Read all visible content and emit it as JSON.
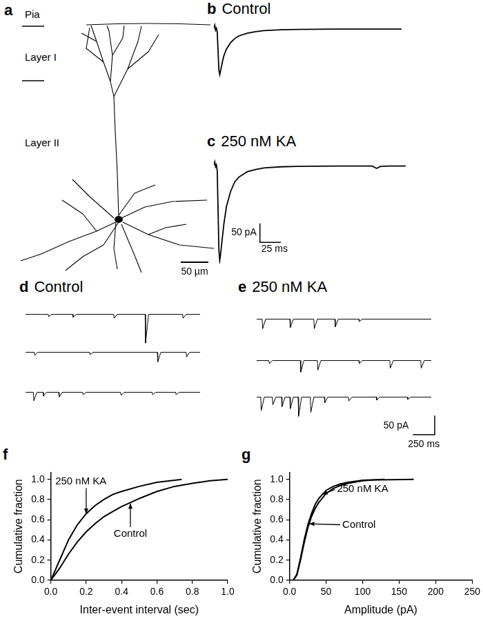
{
  "diagram": {
    "panel": "a",
    "pia": "Pia",
    "layer_1": "Layer I",
    "layer_2": "Layer II",
    "scale_bar": "50 µm"
  },
  "chart_data": [
    {
      "panel": "b",
      "type": "line",
      "title": "Control",
      "color": "#000000",
      "tick_labels": false,
      "xlim": [
        0,
        230
      ],
      "ylim": [
        -140,
        20
      ],
      "x": [
        0,
        1,
        2,
        3,
        4,
        5,
        6,
        7,
        8,
        10,
        12,
        15,
        20,
        25,
        30,
        40,
        50,
        60,
        80,
        100,
        150,
        200,
        225
      ],
      "values": [
        0,
        8,
        -5,
        0,
        -10,
        -60,
        -110,
        -122,
        -112,
        -90,
        -72,
        -55,
        -38,
        -27,
        -20,
        -13,
        -9,
        -6,
        -4,
        -3,
        -2,
        -2,
        -2
      ]
    },
    {
      "panel": "c",
      "type": "line",
      "title": "250 nM KA",
      "color": "#000000",
      "tick_labels": false,
      "xlim": [
        0,
        230
      ],
      "ylim": [
        -260,
        20
      ],
      "x": [
        0,
        1,
        2,
        3,
        4,
        5,
        6,
        7,
        8,
        10,
        12,
        15,
        20,
        25,
        30,
        40,
        50,
        60,
        80,
        100,
        150,
        190,
        195,
        200,
        210,
        230
      ],
      "values": [
        0,
        8,
        -5,
        0,
        -15,
        -120,
        -225,
        -252,
        -235,
        -195,
        -155,
        -110,
        -70,
        -45,
        -32,
        -18,
        -12,
        -8,
        -5,
        -4,
        -3,
        -3,
        -9,
        -4,
        -3,
        -3
      ],
      "scale_bar": {
        "x": 25,
        "x_label": "25 ms",
        "y": 50,
        "y_label": "50 pA"
      }
    },
    {
      "panel": "d",
      "type": "line",
      "title": "Control",
      "color": "#000000",
      "tick_labels": false,
      "xlim": [
        0,
        2000
      ],
      "ylim": [
        -80,
        10
      ],
      "series": [
        {
          "x": [
            0,
            260,
            265,
            300,
            540,
            545,
            580,
            1010,
            1015,
            1050,
            1370,
            1375,
            1410,
            1800,
            1805,
            1840,
            2000
          ],
          "values": [
            0,
            0,
            -6,
            0,
            0,
            -8,
            0,
            0,
            -10,
            0,
            0,
            -75,
            0,
            0,
            -10,
            0,
            0
          ]
        },
        {
          "x": [
            0,
            100,
            105,
            140,
            735,
            740,
            775,
            1510,
            1515,
            1550,
            1840,
            1845,
            1880,
            2000
          ],
          "values": [
            0,
            0,
            -8,
            0,
            0,
            -6,
            0,
            0,
            -25,
            0,
            0,
            -12,
            0,
            0
          ]
        },
        {
          "x": [
            0,
            90,
            95,
            130,
            200,
            205,
            240,
            380,
            385,
            420,
            655,
            660,
            695,
            1090,
            1095,
            1130,
            1450,
            1455,
            1490,
            1720,
            1725,
            1760,
            2000
          ],
          "values": [
            0,
            0,
            -22,
            0,
            0,
            -10,
            0,
            0,
            -12,
            0,
            0,
            -6,
            0,
            0,
            -8,
            0,
            0,
            -6,
            0,
            0,
            -6,
            0,
            0
          ]
        }
      ]
    },
    {
      "panel": "e",
      "type": "line",
      "title": "250 nM KA",
      "color": "#000000",
      "tick_labels": false,
      "xlim": [
        0,
        2000
      ],
      "ylim": [
        -80,
        10
      ],
      "series": [
        {
          "x": [
            0,
            63,
            68,
            103,
            380,
            385,
            420,
            655,
            660,
            695,
            895,
            900,
            935,
            1170,
            1175,
            1210,
            2000
          ],
          "values": [
            0,
            0,
            -25,
            0,
            0,
            -22,
            0,
            0,
            -25,
            0,
            0,
            -20,
            0,
            0,
            -6,
            0,
            0
          ]
        },
        {
          "x": [
            0,
            140,
            145,
            180,
            500,
            505,
            540,
            695,
            700,
            735,
            1170,
            1175,
            1210,
            1525,
            1530,
            1565,
            1880,
            1885,
            1920,
            2000
          ],
          "values": [
            0,
            0,
            -8,
            0,
            0,
            -30,
            0,
            0,
            -25,
            0,
            0,
            -8,
            0,
            0,
            -20,
            0,
            0,
            -20,
            0,
            0
          ]
        },
        {
          "x": [
            0,
            47,
            52,
            87,
            180,
            185,
            220,
            285,
            290,
            325,
            380,
            385,
            420,
            475,
            480,
            515,
            615,
            620,
            655,
            775,
            780,
            815,
            1050,
            1055,
            1090,
            1370,
            1375,
            1410,
            1725,
            1730,
            1765,
            2000
          ],
          "values": [
            0,
            0,
            -35,
            0,
            0,
            -20,
            0,
            0,
            -25,
            0,
            0,
            -30,
            0,
            0,
            -50,
            0,
            0,
            -40,
            0,
            0,
            -15,
            0,
            0,
            -10,
            0,
            0,
            -8,
            0,
            0,
            -6,
            0,
            0
          ]
        }
      ],
      "scale_bar": {
        "x": 250,
        "x_label": "250 ms",
        "y": 50,
        "y_label": "50 pA"
      }
    },
    {
      "panel": "f",
      "type": "line",
      "color": "#000000",
      "grid": false,
      "x_label": "Inter-event interval (sec)",
      "y_label": "Cumulative fraction",
      "xlim": [
        0,
        1
      ],
      "ylim": [
        0,
        1.07
      ],
      "xticks": [
        {
          "value": 0,
          "label": "0.0"
        },
        0.2,
        0.4,
        0.6,
        0.8,
        {
          "value": 1,
          "label": "1.0"
        }
      ],
      "yticks": [
        {
          "value": 0,
          "label": "0.0"
        },
        0.2,
        0.4,
        0.6,
        0.8,
        {
          "value": 1,
          "label": "1.0"
        }
      ],
      "series": [
        {
          "x": [
            0,
            0.05,
            0.1,
            0.15,
            0.2,
            0.25,
            0.3,
            0.35,
            0.4,
            0.45,
            0.5,
            0.6,
            0.7,
            0.8,
            0.9,
            1.0
          ],
          "values": [
            0,
            0.12,
            0.26,
            0.38,
            0.48,
            0.56,
            0.63,
            0.68,
            0.73,
            0.77,
            0.81,
            0.88,
            0.93,
            0.96,
            0.985,
            1.0
          ]
        },
        {
          "x": [
            0,
            0.05,
            0.1,
            0.15,
            0.2,
            0.25,
            0.3,
            0.35,
            0.4,
            0.5,
            0.6,
            0.7,
            0.74
          ],
          "values": [
            0,
            0.2,
            0.4,
            0.55,
            0.66,
            0.74,
            0.8,
            0.85,
            0.88,
            0.93,
            0.97,
            0.99,
            1.0
          ]
        }
      ],
      "annotations": [
        {
          "text": "250 nM KA",
          "x": 0.2,
          "y": 0.66,
          "text_x": 0.17,
          "text_y": 0.98
        },
        {
          "text": "Control",
          "x": 0.45,
          "y": 0.76,
          "text_x": 0.45,
          "text_y": 0.46
        }
      ]
    },
    {
      "panel": "g",
      "type": "line",
      "color": "#000000",
      "grid": false,
      "x_label": "Amplitude (pA)",
      "y_label": "Cumulative fraction",
      "xlim": [
        0,
        250
      ],
      "ylim": [
        0,
        1.07
      ],
      "xticks": [
        {
          "value": 0,
          "label": "0.0"
        },
        50,
        100,
        150,
        200,
        250
      ],
      "yticks": [
        {
          "value": 0,
          "label": "0.0"
        },
        0.2,
        0.4,
        0.6,
        0.8,
        {
          "value": 1,
          "label": "1.0"
        }
      ],
      "series": [
        {
          "x": [
            5,
            10,
            15,
            20,
            25,
            30,
            35,
            40,
            50,
            60,
            70,
            80,
            100,
            120,
            170
          ],
          "values": [
            0,
            0.05,
            0.2,
            0.37,
            0.52,
            0.63,
            0.71,
            0.77,
            0.86,
            0.91,
            0.94,
            0.96,
            0.985,
            0.995,
            1.0
          ]
        },
        {
          "x": [
            5,
            10,
            15,
            20,
            25,
            30,
            35,
            40,
            50,
            60,
            70,
            80,
            100,
            130
          ],
          "values": [
            0,
            0.06,
            0.22,
            0.4,
            0.55,
            0.66,
            0.75,
            0.81,
            0.89,
            0.93,
            0.955,
            0.97,
            0.99,
            1.0
          ]
        }
      ],
      "annotations": [
        {
          "text": "250 nM KA",
          "x": 45,
          "y": 0.85,
          "text_x": 100,
          "text_y": 0.9
        },
        {
          "text": "Control",
          "x": 27,
          "y": 0.56,
          "text_x": 95,
          "text_y": 0.55
        }
      ]
    }
  ]
}
